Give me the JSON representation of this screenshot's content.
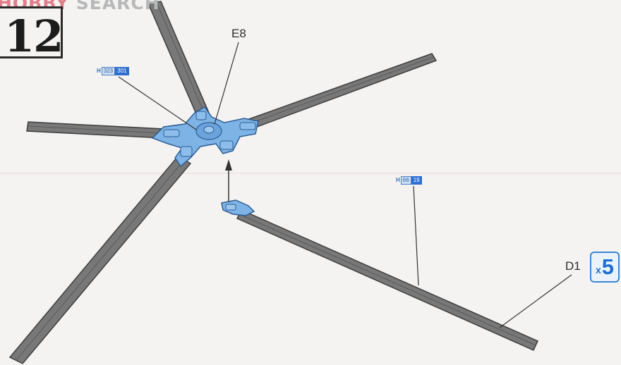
{
  "watermark": {
    "part1": "HOBBY",
    "part2": " SEARCH"
  },
  "step": {
    "number": "12"
  },
  "parts": {
    "rotor_head": "E8",
    "blade": "D1"
  },
  "color_codes": [
    {
      "prefix": "H",
      "code_a": "323",
      "code_b": "301"
    },
    {
      "prefix": "H",
      "code_a": "66",
      "code_b": "19"
    }
  ],
  "quantity": {
    "prefix": "x",
    "count": "5"
  },
  "colors": {
    "blade": "#767676",
    "blade_edge": "#3e3e3e",
    "highlight": "#7eb3e6",
    "highlight_edge": "#2d5d93",
    "leader": "#333333"
  }
}
